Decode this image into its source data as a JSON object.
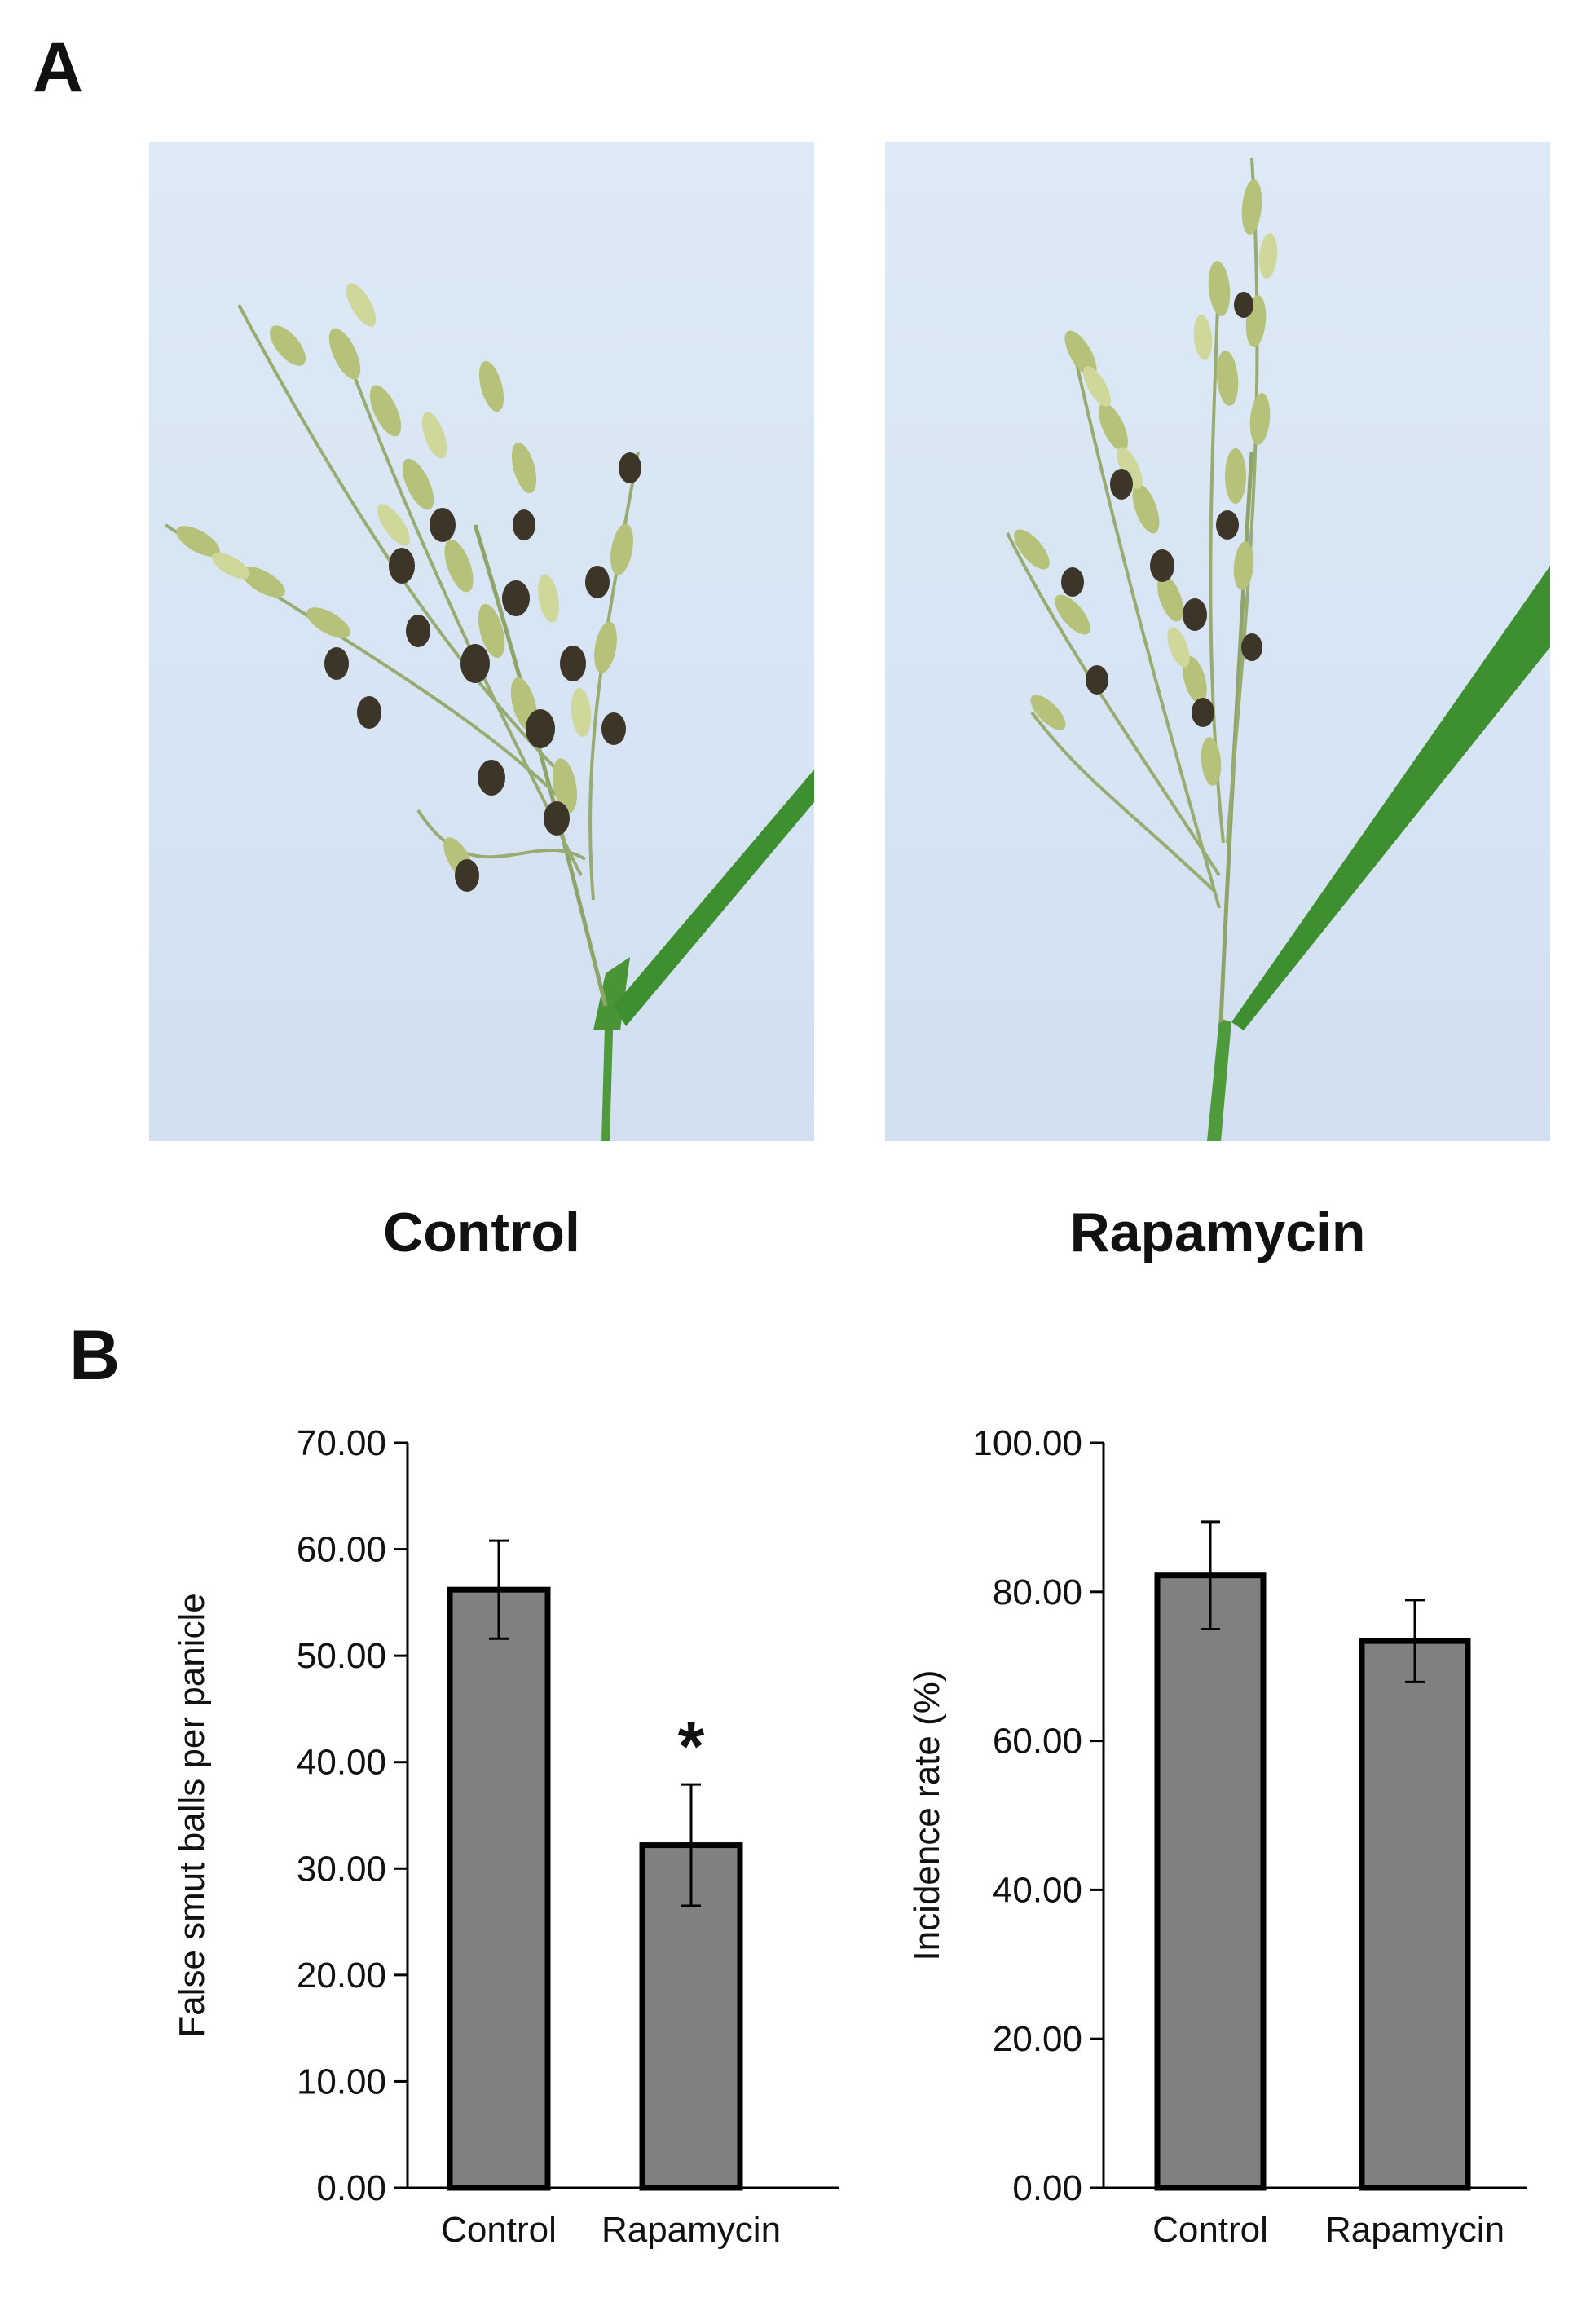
{
  "panel_labels": {
    "a": "A",
    "b": "B"
  },
  "photos": [
    {
      "caption": "Control"
    },
    {
      "caption": "Rapamycin"
    }
  ],
  "colors": {
    "bar_fill": "#808080",
    "bar_stroke": "#000000",
    "photo_background": "#dbe7f4",
    "panicle_green": "#a9b96a",
    "smut_ball": "#3c3528",
    "leaf": "#3e8f2f"
  },
  "chart_data": [
    {
      "type": "bar",
      "categories": [
        "Control",
        "Rapamycin"
      ],
      "values": [
        56.2,
        32.2
      ],
      "errors": [
        4.6,
        5.7
      ],
      "annotations": [
        "",
        "*"
      ],
      "ylabel": "False smut balls per panicle",
      "ylim": [
        0,
        70
      ],
      "yticks": [
        0,
        10,
        20,
        30,
        40,
        50,
        60,
        70
      ],
      "ytick_labels": [
        "0.00",
        "10.00",
        "20.00",
        "30.00",
        "40.00",
        "50.00",
        "60.00",
        "70.00"
      ],
      "grid": false
    },
    {
      "type": "bar",
      "categories": [
        "Control",
        "Rapamycin"
      ],
      "values": [
        82.2,
        73.4
      ],
      "errors": [
        7.2,
        5.5
      ],
      "annotations": [
        "",
        ""
      ],
      "ylabel": "Incidence rate (%)",
      "ylim": [
        0,
        100
      ],
      "yticks": [
        0,
        20,
        40,
        60,
        80,
        100
      ],
      "ytick_labels": [
        "0.00",
        "20.00",
        "40.00",
        "60.00",
        "80.00",
        "100.00"
      ],
      "grid": false
    }
  ]
}
